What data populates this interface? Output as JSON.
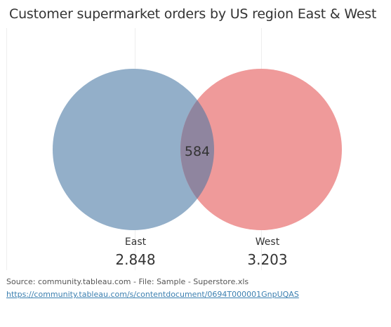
{
  "title": "Customer supermarket orders by US region East & West",
  "venn": {
    "left": {
      "label": "East",
      "value": "2.848",
      "color": "#93afc9"
    },
    "right": {
      "label": "West",
      "value": "3.203",
      "color": "#ef9a9a"
    },
    "overlap": {
      "value": "584",
      "color": "#8f859f"
    }
  },
  "footer": {
    "source": "Source: community.tableau.com - File: Sample - Superstore.xls",
    "link": "https://community.tableau.com/s/contentdocument/0694T000001GnpUQAS"
  }
}
